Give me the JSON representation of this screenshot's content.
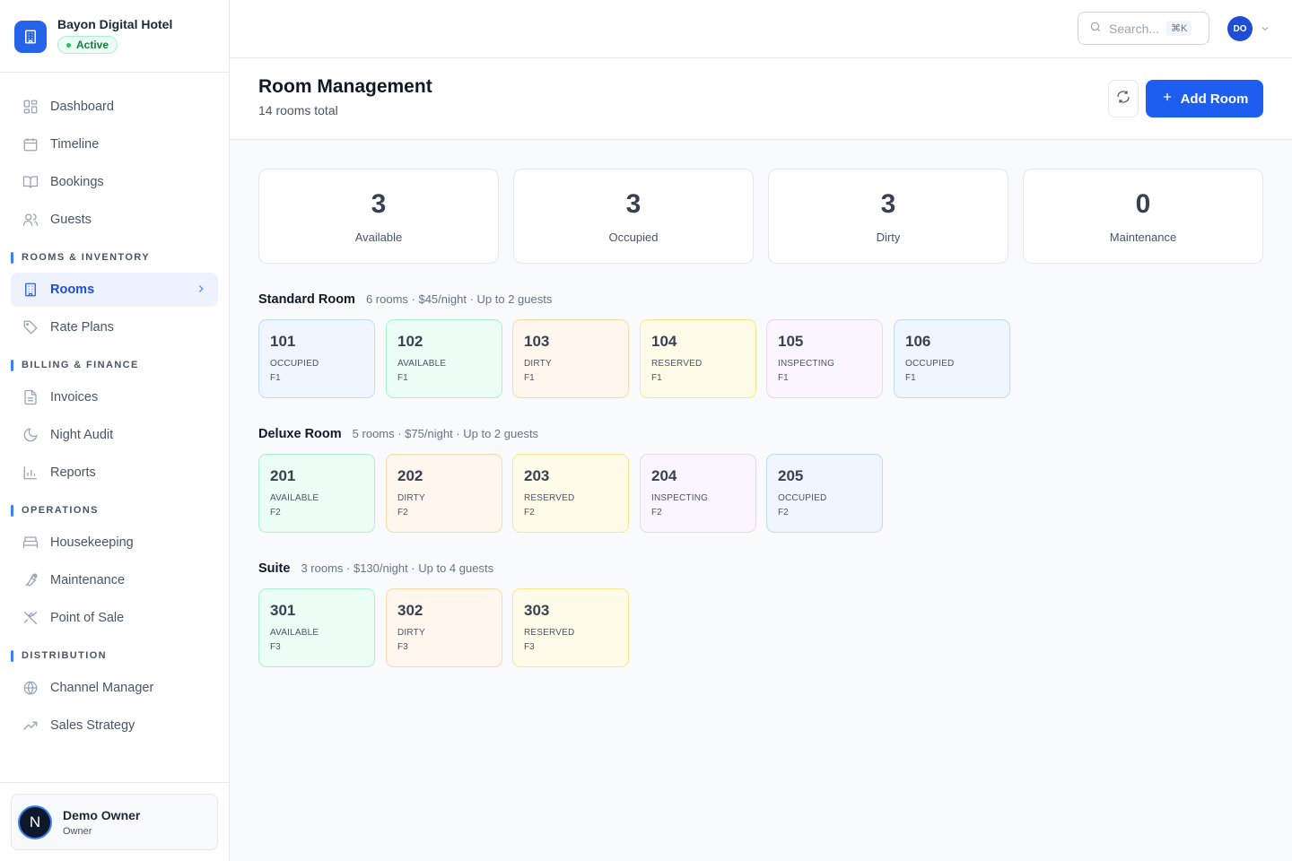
{
  "brand": {
    "name": "Bayon Digital Hotel",
    "status": "Active"
  },
  "nav": {
    "main": [
      {
        "label": "Dashboard",
        "icon": "dashboard-icon"
      },
      {
        "label": "Timeline",
        "icon": "calendar-icon"
      },
      {
        "label": "Bookings",
        "icon": "book-icon"
      },
      {
        "label": "Guests",
        "icon": "users-icon"
      }
    ],
    "sections": [
      {
        "title": "ROOMS & INVENTORY",
        "items": [
          {
            "label": "Rooms",
            "icon": "building-icon",
            "active": true
          },
          {
            "label": "Rate Plans",
            "icon": "tag-icon"
          }
        ]
      },
      {
        "title": "BILLING & FINANCE",
        "items": [
          {
            "label": "Invoices",
            "icon": "file-icon"
          },
          {
            "label": "Night Audit",
            "icon": "moon-icon"
          },
          {
            "label": "Reports",
            "icon": "bar-chart-icon"
          }
        ]
      },
      {
        "title": "OPERATIONS",
        "items": [
          {
            "label": "Housekeeping",
            "icon": "bed-icon"
          },
          {
            "label": "Maintenance",
            "icon": "wrench-icon"
          },
          {
            "label": "Point of Sale",
            "icon": "utensils-icon"
          }
        ]
      },
      {
        "title": "DISTRIBUTION",
        "items": [
          {
            "label": "Channel Manager",
            "icon": "globe-icon"
          },
          {
            "label": "Sales Strategy",
            "icon": "trending-up-icon"
          }
        ]
      }
    ]
  },
  "user": {
    "name": "Demo Owner",
    "role": "Owner",
    "initial": "N"
  },
  "topbar": {
    "search_placeholder": "Search...",
    "shortcut": "⌘K",
    "avatar_initials": "DO"
  },
  "header": {
    "title": "Room Management",
    "subtitle": "14 rooms total",
    "add_label": "Add Room"
  },
  "stats": [
    {
      "value": "3",
      "label": "Available"
    },
    {
      "value": "3",
      "label": "Occupied"
    },
    {
      "value": "3",
      "label": "Dirty"
    },
    {
      "value": "0",
      "label": "Maintenance"
    }
  ],
  "groups": [
    {
      "name": "Standard Room",
      "meta": "6 rooms · $45/night · Up to 2 guests",
      "rooms": [
        {
          "number": "101",
          "status": "OCCUPIED",
          "floor": "F1"
        },
        {
          "number": "102",
          "status": "AVAILABLE",
          "floor": "F1"
        },
        {
          "number": "103",
          "status": "DIRTY",
          "floor": "F1"
        },
        {
          "number": "104",
          "status": "RESERVED",
          "floor": "F1"
        },
        {
          "number": "105",
          "status": "INSPECTING",
          "floor": "F1"
        },
        {
          "number": "106",
          "status": "OCCUPIED",
          "floor": "F1"
        }
      ]
    },
    {
      "name": "Deluxe Room",
      "meta": "5 rooms · $75/night · Up to 2 guests",
      "rooms": [
        {
          "number": "201",
          "status": "AVAILABLE",
          "floor": "F2"
        },
        {
          "number": "202",
          "status": "DIRTY",
          "floor": "F2"
        },
        {
          "number": "203",
          "status": "RESERVED",
          "floor": "F2"
        },
        {
          "number": "204",
          "status": "INSPECTING",
          "floor": "F2"
        },
        {
          "number": "205",
          "status": "OCCUPIED",
          "floor": "F2"
        }
      ]
    },
    {
      "name": "Suite",
      "meta": "3 rooms · $130/night · Up to 4 guests",
      "rooms": [
        {
          "number": "301",
          "status": "AVAILABLE",
          "floor": "F3"
        },
        {
          "number": "302",
          "status": "DIRTY",
          "floor": "F3"
        },
        {
          "number": "303",
          "status": "RESERVED",
          "floor": "F3"
        }
      ]
    }
  ],
  "colors": {
    "accent": "#1d5ef0",
    "available": "#ecfdf5",
    "occupied": "#eff6ff",
    "dirty": "#fff7ed",
    "reserved": "#fefce8",
    "inspecting": "#faf5ff"
  }
}
